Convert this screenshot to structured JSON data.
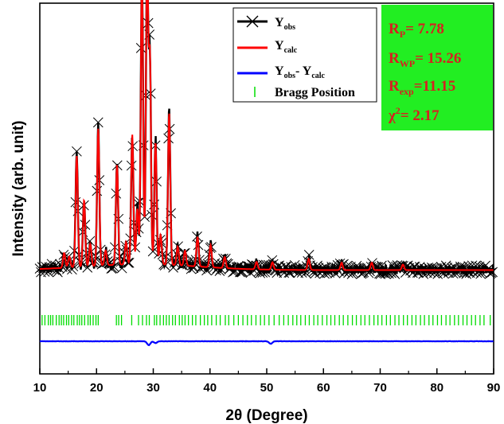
{
  "chart_data": {
    "type": "line",
    "title": "",
    "xlabel": "2θ (Degree)",
    "ylabel": "Intensity (arb. unit)",
    "xlim": [
      10,
      90
    ],
    "ylim": [
      0,
      100
    ],
    "x_ticks": [
      "10",
      "20",
      "30",
      "40",
      "50",
      "60",
      "70",
      "80",
      "90"
    ],
    "y_ticks_shown": false,
    "grid": false,
    "legend_placement": "top-center",
    "legend": [
      {
        "key": "obs",
        "main": "Y",
        "sub": "obs",
        "color": "#000000",
        "marker": "x"
      },
      {
        "key": "calc",
        "main": "Y",
        "sub": "calc",
        "color": "#ff0000",
        "marker": "none"
      },
      {
        "key": "diff",
        "main": "Y",
        "sub": "obs",
        "mid": "- Y",
        "sub2": "calc",
        "color": "#0000ff",
        "marker": "none"
      },
      {
        "key": "bragg",
        "main": "Bragg Position",
        "color": "#00dd00",
        "marker": "tick"
      }
    ],
    "fit_box": {
      "background": "#22ee22",
      "lines": [
        {
          "main": "R",
          "sub": "P",
          "rest": "= 7.78"
        },
        {
          "main": "R",
          "sub": "WP",
          "rest": "= 15.26"
        },
        {
          "main": "R",
          "sub": "exp",
          "rest": "=11.15"
        },
        {
          "main": "χ",
          "sup": "2",
          "rest": "= 2.17"
        }
      ]
    },
    "baseline": 28,
    "peaks": [
      {
        "x": 14.3,
        "h": 4
      },
      {
        "x": 15.2,
        "h": 3
      },
      {
        "x": 16.5,
        "h": 30
      },
      {
        "x": 17.8,
        "h": 18
      },
      {
        "x": 18.9,
        "h": 6
      },
      {
        "x": 20.3,
        "h": 37
      },
      {
        "x": 21.6,
        "h": 4
      },
      {
        "x": 23.6,
        "h": 27
      },
      {
        "x": 25.2,
        "h": 6
      },
      {
        "x": 26.3,
        "h": 35
      },
      {
        "x": 27.2,
        "h": 15
      },
      {
        "x": 28.0,
        "h": 78
      },
      {
        "x": 28.9,
        "h": 82
      },
      {
        "x": 29.4,
        "h": 55
      },
      {
        "x": 30.4,
        "h": 33
      },
      {
        "x": 31.3,
        "h": 8
      },
      {
        "x": 32.8,
        "h": 41
      },
      {
        "x": 34.3,
        "h": 5
      },
      {
        "x": 35.6,
        "h": 4
      },
      {
        "x": 37.8,
        "h": 8
      },
      {
        "x": 40.1,
        "h": 6
      },
      {
        "x": 42.6,
        "h": 3
      },
      {
        "x": 48.2,
        "h": 2
      },
      {
        "x": 51.0,
        "h": 2
      },
      {
        "x": 57.4,
        "h": 3
      },
      {
        "x": 63.2,
        "h": 2
      },
      {
        "x": 68.5,
        "h": 2
      },
      {
        "x": 74.0,
        "h": 1.5
      }
    ],
    "bragg_positions": [
      10.4,
      10.9,
      11.5,
      11.9,
      12.3,
      12.9,
      13.4,
      13.8,
      14.2,
      14.7,
      15.1,
      15.6,
      16.0,
      16.6,
      17.0,
      17.4,
      17.9,
      18.5,
      18.9,
      19.4,
      19.9,
      20.3,
      23.5,
      23.9,
      24.4,
      26.2,
      27.4,
      28.1,
      28.8,
      29.3,
      30.2,
      30.6,
      31.2,
      31.8,
      32.3,
      32.8,
      33.4,
      33.9,
      34.6,
      35.1,
      35.6,
      36.2,
      36.9,
      37.5,
      38.3,
      39.0,
      39.6,
      40.3,
      41.1,
      41.8,
      42.7,
      43.3,
      44.2,
      45.0,
      45.8,
      46.6,
      47.3,
      48.1,
      48.9,
      49.6,
      50.4,
      51.3,
      52.2,
      53.0,
      53.8,
      54.6,
      55.3,
      56.0,
      56.8,
      57.5,
      58.3,
      59.0,
      59.8,
      60.6,
      61.3,
      62.0,
      62.8,
      63.5,
      64.3,
      65.1,
      65.8,
      66.6,
      67.3,
      68.1,
      68.9,
      69.6,
      70.3,
      71.1,
      71.8,
      72.6,
      73.3,
      74.1,
      74.8,
      75.6,
      76.3,
      77.1,
      77.8,
      78.6,
      79.3,
      80.1,
      80.8,
      81.6,
      82.3,
      83.1,
      83.8,
      84.6,
      85.3,
      86.1,
      86.8,
      87.6,
      88.3,
      89.4
    ],
    "difference_offset": -10,
    "difference_dips": [
      {
        "x": 29.2,
        "d": 2.2
      },
      {
        "x": 30.4,
        "d": 1.0
      },
      {
        "x": 50.7,
        "d": 1.4
      }
    ]
  }
}
